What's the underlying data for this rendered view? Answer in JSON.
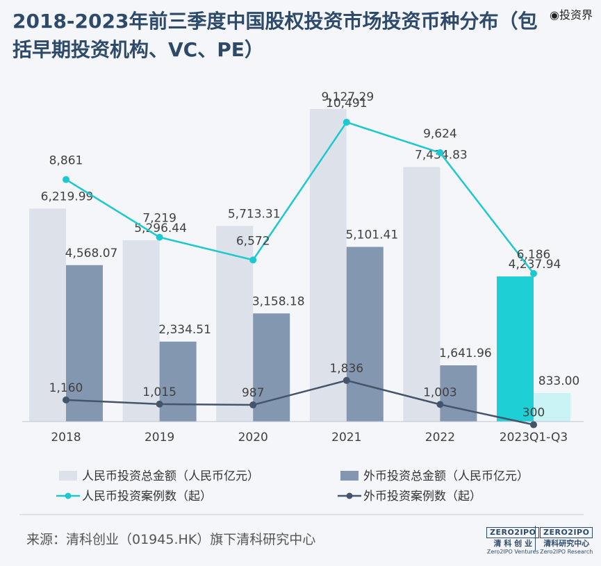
{
  "title": "2018-2023年前三季度中国股权投资市场投资币种分布（包括早期投资机构、VC、PE）",
  "watermark": "◉投资界",
  "source": "来源：清科创业（01945.HK）旗下清科研究中心",
  "logos": [
    {
      "box": "ZERO2IPO",
      "cn": "清 科 创 业",
      "en": "Zero2IPO Ventures"
    },
    {
      "box": "ZERO2IPO",
      "cn": "清科研究中心",
      "en": "Zero2IPO Research"
    }
  ],
  "colors": {
    "rmb_bar": "#dde2ea",
    "foreign_bar": "#8497b0",
    "rmb_bar_highlight": "#1ecfd6",
    "foreign_bar_highlight": "#c9f3f4",
    "rmb_line": "#1ec8d0",
    "foreign_line": "#44546a"
  },
  "chart_data": {
    "type": "bar",
    "categories": [
      "2018",
      "2019",
      "2020",
      "2021",
      "2022",
      "2023Q1-Q3"
    ],
    "series": [
      {
        "name": "人民币投资总金额（人民币亿元）",
        "kind": "bar",
        "values": [
          6219.99,
          5296.44,
          5713.31,
          9127.29,
          7434.83,
          4237.94
        ],
        "labels": [
          "6,219.99",
          "5,296.44",
          "5,713.31",
          "9,127.29",
          "7,434.83",
          "4,237.94"
        ]
      },
      {
        "name": "外币投资总金额（人民币亿元）",
        "kind": "bar",
        "values": [
          4568.07,
          2334.51,
          3158.18,
          5101.41,
          1641.96,
          833.0
        ],
        "labels": [
          "4,568.07",
          "2,334.51",
          "3,158.18",
          "5,101.41",
          "1,641.96",
          "833.00"
        ]
      },
      {
        "name": "人民币投资案例数（起）",
        "kind": "line",
        "values": [
          8861,
          7219,
          6572,
          10491,
          9624,
          6186
        ],
        "labels": [
          "8,861",
          "7,219",
          "6,572",
          "10,491",
          "9,624",
          "6,186"
        ]
      },
      {
        "name": "外币投资案例数（起）",
        "kind": "line",
        "values": [
          1160,
          1015,
          987,
          1836,
          1003,
          300
        ],
        "labels": [
          "1,160",
          "1,015",
          "987",
          "1,836",
          "1,003",
          "300"
        ]
      }
    ],
    "highlight_category": "2023Q1-Q3",
    "legend_position": "bottom",
    "grid": false
  }
}
